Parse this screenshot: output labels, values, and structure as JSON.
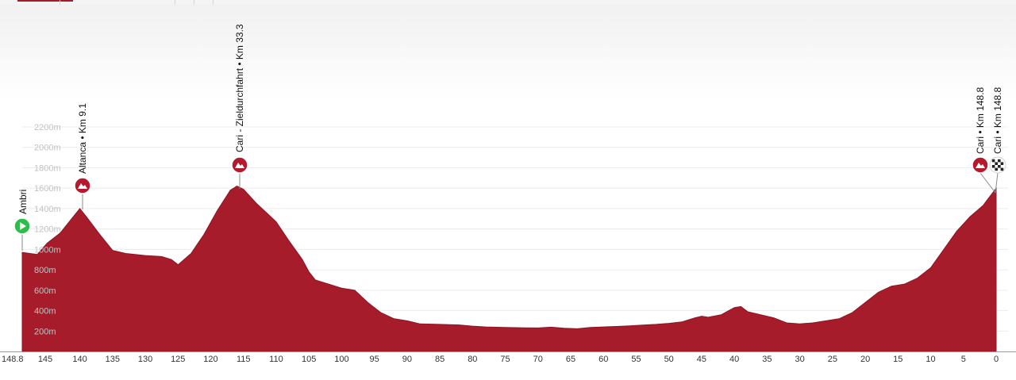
{
  "chart_data": {
    "type": "area",
    "title": "",
    "xlabel": "",
    "ylabel": "",
    "x_reversed": true,
    "xlim": [
      148.8,
      0
    ],
    "ylim": [
      0,
      2200
    ],
    "x_ticks": [
      148.8,
      145,
      140,
      135,
      130,
      125,
      120,
      115,
      110,
      105,
      100,
      95,
      90,
      85,
      80,
      75,
      70,
      65,
      60,
      55,
      50,
      45,
      40,
      35,
      30,
      25,
      20,
      15,
      10,
      5,
      0
    ],
    "x_tick_labels": [
      "148.8",
      "145",
      "140",
      "135",
      "130",
      "125",
      "120",
      "115",
      "110",
      "105",
      "100",
      "95",
      "90",
      "85",
      "80",
      "75",
      "70",
      "65",
      "60",
      "55",
      "50",
      "45",
      "40",
      "35",
      "30",
      "25",
      "20",
      "15",
      "10",
      "5",
      "0"
    ],
    "y_ticks": [
      200,
      400,
      600,
      800,
      1000,
      1200,
      1400,
      1600,
      1800,
      2000,
      2200
    ],
    "y_tick_labels": [
      "200m",
      "400m",
      "600m",
      "800m",
      "1000m",
      "1200m",
      "1400m",
      "1600m",
      "1800m",
      "2000m",
      "2200m"
    ],
    "grid": true,
    "fill_color": "#a61c2b",
    "series": [
      {
        "x": [
          148.8,
          146.5,
          145,
          143,
          141,
          140,
          139,
          137,
          135,
          133,
          130,
          127.5,
          126,
          125,
          123,
          121,
          119,
          117,
          116,
          115,
          113,
          111,
          110,
          108,
          106,
          105,
          104,
          102,
          100,
          98,
          96,
          94,
          92,
          90,
          88,
          85,
          82,
          80,
          78,
          75,
          72,
          70,
          68,
          66,
          64,
          62,
          60,
          58,
          56,
          54,
          52,
          50,
          48,
          46,
          45,
          44,
          42,
          40,
          39,
          38,
          36,
          34,
          32,
          30,
          28,
          26,
          24,
          22,
          20,
          18,
          16,
          14,
          12,
          10,
          8,
          6,
          4,
          2,
          0
        ],
        "y": [
          970,
          950,
          1060,
          1160,
          1320,
          1400,
          1320,
          1150,
          990,
          960,
          940,
          930,
          900,
          850,
          960,
          1150,
          1380,
          1580,
          1620,
          1590,
          1450,
          1330,
          1270,
          1080,
          900,
          780,
          700,
          660,
          620,
          600,
          480,
          380,
          320,
          300,
          270,
          265,
          260,
          248,
          240,
          235,
          232,
          230,
          238,
          228,
          222,
          235,
          240,
          245,
          250,
          258,
          265,
          275,
          290,
          330,
          345,
          335,
          360,
          430,
          440,
          390,
          360,
          330,
          280,
          270,
          280,
          300,
          320,
          380,
          480,
          580,
          640,
          660,
          720,
          820,
          1000,
          1180,
          1320,
          1430,
          1600
        ]
      }
    ],
    "markers": [
      {
        "km": "148.8",
        "label": "Ambri",
        "type": "start",
        "color": "#2ebd4b"
      },
      {
        "km": "140",
        "label": "Altanca • Km 9.1",
        "type": "climb",
        "color": "#b5192c"
      },
      {
        "km": "116",
        "label": "Cari - Zieldurchfahrt • Km 33.3",
        "type": "climb",
        "color": "#b5192c"
      },
      {
        "km": "0",
        "label": "Cari • Km 148.8",
        "type": "climb",
        "color": "#b5192c"
      },
      {
        "km": "0",
        "label": "Cari • Km 148.8",
        "type": "finish",
        "color": "#222222"
      }
    ]
  }
}
